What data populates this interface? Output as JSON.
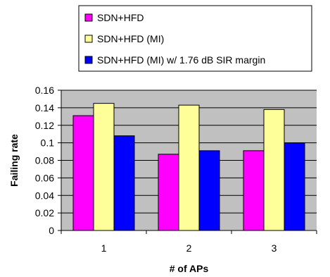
{
  "chart_data": {
    "type": "bar",
    "title": "",
    "xlabel": "# of APs",
    "ylabel": "Failing rate",
    "categories": [
      "1",
      "2",
      "3"
    ],
    "ylim": [
      0,
      0.16
    ],
    "yticks": [
      "0",
      "0.02",
      "0.04",
      "0.06",
      "0.08",
      "0.1",
      "0.12",
      "0.14",
      "0.16"
    ],
    "grid": true,
    "legend_position": "top",
    "series": [
      {
        "name": "SDN+HFD",
        "values": [
          0.131,
          0.087,
          0.091
        ],
        "color": "#ff00ff"
      },
      {
        "name": "SDN+HFD (MI)",
        "values": [
          0.145,
          0.143,
          0.138
        ],
        "color": "#ffff99"
      },
      {
        "name": "SDN+HFD (MI) w/ 1.76 dB SIR margin",
        "values": [
          0.108,
          0.091,
          0.1
        ],
        "color": "#0000ff"
      }
    ],
    "plot_background": "#c0c0c0"
  }
}
